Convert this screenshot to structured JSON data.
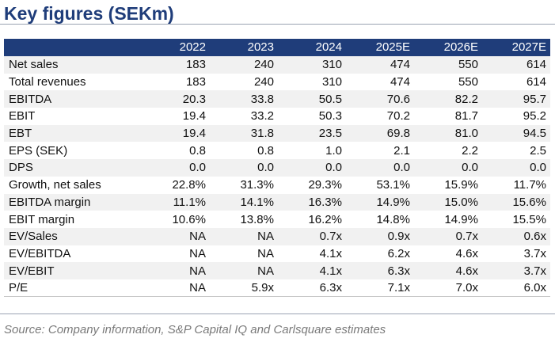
{
  "title": "Key figures (SEKm)",
  "table": {
    "columns": [
      "",
      "2022",
      "2023",
      "2024",
      "2025E",
      "2026E",
      "2027E"
    ],
    "rows": [
      {
        "label": "Net sales",
        "values": [
          "183",
          "240",
          "310",
          "474",
          "550",
          "614"
        ]
      },
      {
        "label": "Total revenues",
        "values": [
          "183",
          "240",
          "310",
          "474",
          "550",
          "614"
        ]
      },
      {
        "label": "EBITDA",
        "values": [
          "20.3",
          "33.8",
          "50.5",
          "70.6",
          "82.2",
          "95.7"
        ]
      },
      {
        "label": "EBIT",
        "values": [
          "19.4",
          "33.2",
          "50.3",
          "70.2",
          "81.7",
          "95.2"
        ]
      },
      {
        "label": "EBT",
        "values": [
          "19.4",
          "31.8",
          "23.5",
          "69.8",
          "81.0",
          "94.5"
        ]
      },
      {
        "label": "EPS (SEK)",
        "values": [
          "0.8",
          "0.8",
          "1.0",
          "2.1",
          "2.2",
          "2.5"
        ]
      },
      {
        "label": "DPS",
        "values": [
          "0.0",
          "0.0",
          "0.0",
          "0.0",
          "0.0",
          "0.0"
        ]
      },
      {
        "label": "Growth, net sales",
        "values": [
          "22.8%",
          "31.3%",
          "29.3%",
          "53.1%",
          "15.9%",
          "11.7%"
        ]
      },
      {
        "label": "EBITDA margin",
        "values": [
          "11.1%",
          "14.1%",
          "16.3%",
          "14.9%",
          "15.0%",
          "15.6%"
        ]
      },
      {
        "label": "EBIT margin",
        "values": [
          "10.6%",
          "13.8%",
          "16.2%",
          "14.8%",
          "14.9%",
          "15.5%"
        ]
      },
      {
        "label": "EV/Sales",
        "values": [
          "NA",
          "NA",
          "0.7x",
          "0.9x",
          "0.7x",
          "0.6x"
        ]
      },
      {
        "label": "EV/EBITDA",
        "values": [
          "NA",
          "NA",
          "4.1x",
          "6.2x",
          "4.6x",
          "3.7x"
        ]
      },
      {
        "label": "EV/EBIT",
        "values": [
          "NA",
          "NA",
          "4.1x",
          "6.3x",
          "4.6x",
          "3.7x"
        ]
      },
      {
        "label": "P/E",
        "values": [
          "NA",
          "5.9x",
          "6.3x",
          "7.1x",
          "7.0x",
          "6.0x"
        ]
      }
    ]
  },
  "source": "Source: Company information, S&P Capital IQ and Carlsquare estimates",
  "colors": {
    "header_bg": "#1f3d7a",
    "title": "#1f3d7a",
    "stripe": "#f1f1f1"
  }
}
